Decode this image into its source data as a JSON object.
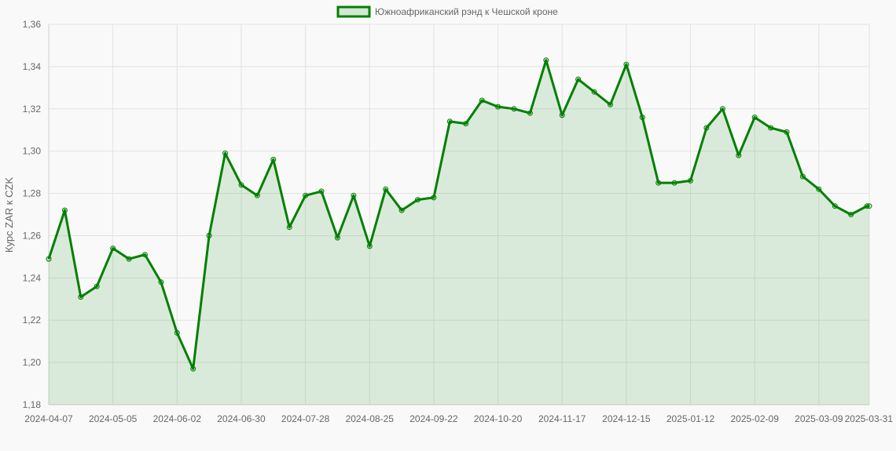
{
  "chart_data": {
    "type": "area",
    "legend": "top",
    "grid": true,
    "ylabel": "Курс ZAR к CZK",
    "xlabel": "",
    "ylim": [
      1.18,
      1.36
    ],
    "y_ticks": [
      "1,18",
      "1,20",
      "1,22",
      "1,24",
      "1,26",
      "1,28",
      "1,30",
      "1,32",
      "1,34",
      "1,36"
    ],
    "x_tick_labels": [
      "2024-04-07",
      "2024-05-05",
      "2024-06-02",
      "2024-06-30",
      "2024-07-28",
      "2024-08-25",
      "2024-09-22",
      "2024-10-20",
      "2024-11-17",
      "2024-12-15",
      "2025-01-12",
      "2025-02-09",
      "2025-03-09",
      "2025-03-31"
    ],
    "series": [
      {
        "name": "Южноафриканский рэнд к Чешской кроне",
        "color": "#008000",
        "fill": "rgba(0,128,0,0.12)",
        "x": [
          "2024-04-07",
          "2024-04-14",
          "2024-04-21",
          "2024-04-28",
          "2024-05-05",
          "2024-05-12",
          "2024-05-19",
          "2024-05-26",
          "2024-06-02",
          "2024-06-09",
          "2024-06-16",
          "2024-06-23",
          "2024-06-30",
          "2024-07-07",
          "2024-07-14",
          "2024-07-21",
          "2024-07-28",
          "2024-08-04",
          "2024-08-11",
          "2024-08-18",
          "2024-08-25",
          "2024-09-01",
          "2024-09-08",
          "2024-09-15",
          "2024-09-22",
          "2024-09-29",
          "2024-10-06",
          "2024-10-13",
          "2024-10-20",
          "2024-10-27",
          "2024-11-03",
          "2024-11-10",
          "2024-11-17",
          "2024-11-24",
          "2024-12-01",
          "2024-12-08",
          "2024-12-15",
          "2024-12-22",
          "2024-12-29",
          "2025-01-05",
          "2025-01-12",
          "2025-01-19",
          "2025-01-26",
          "2025-02-02",
          "2025-02-09",
          "2025-02-16",
          "2025-02-23",
          "2025-03-02",
          "2025-03-09",
          "2025-03-16",
          "2025-03-23",
          "2025-03-30",
          "2025-03-31"
        ],
        "values": [
          1.249,
          1.272,
          1.231,
          1.236,
          1.254,
          1.249,
          1.251,
          1.238,
          1.214,
          1.197,
          1.26,
          1.299,
          1.284,
          1.279,
          1.296,
          1.264,
          1.279,
          1.281,
          1.259,
          1.279,
          1.255,
          1.282,
          1.272,
          1.277,
          1.278,
          1.314,
          1.313,
          1.324,
          1.321,
          1.32,
          1.318,
          1.343,
          1.317,
          1.334,
          1.328,
          1.322,
          1.341,
          1.316,
          1.285,
          1.285,
          1.286,
          1.311,
          1.32,
          1.298,
          1.316,
          1.311,
          1.309,
          1.288,
          1.282,
          1.274,
          1.27,
          1.274,
          1.274
        ]
      }
    ]
  }
}
